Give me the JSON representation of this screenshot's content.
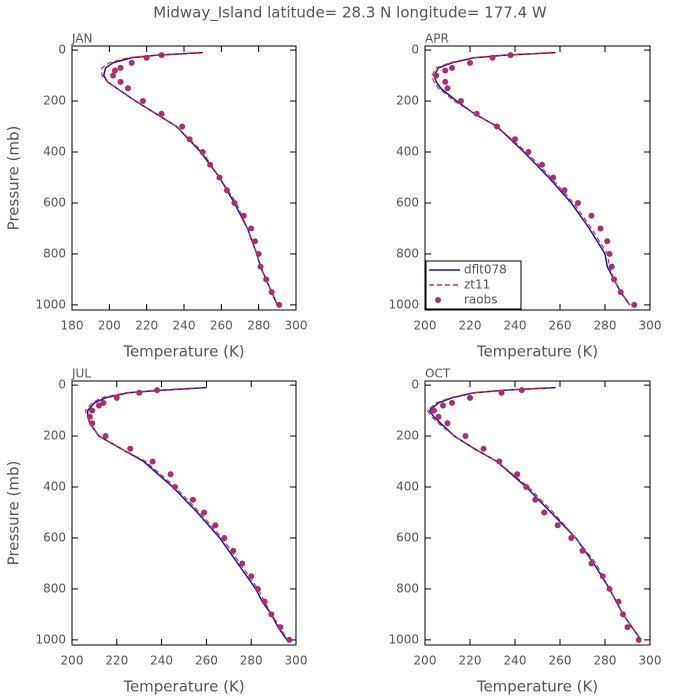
{
  "title": "Midway_Island  latitude= 28.3 N longitude= 177.4 W",
  "chart_data": [
    {
      "type": "line",
      "title": "JAN",
      "xlabel": "Temperature (K)",
      "ylabel": "Pressure (mb)",
      "xlim": [
        180,
        300
      ],
      "xticks": [
        180,
        200,
        220,
        240,
        260,
        280,
        300
      ],
      "ylim": [
        -16,
        1020
      ],
      "y_inverted": true,
      "yticks": [
        0,
        200,
        400,
        600,
        800,
        1000
      ],
      "series": [
        {
          "style": "solid",
          "color": "#1414b4",
          "y": [
            10,
            20,
            30,
            50,
            70,
            100,
            125,
            150,
            200,
            250,
            300,
            400,
            500,
            600,
            700,
            800,
            850,
            900,
            950,
            1000
          ],
          "x": [
            250,
            225,
            212,
            202,
            198,
            197,
            199,
            204,
            214,
            225,
            236,
            249,
            259,
            267,
            274,
            279,
            281,
            284,
            287,
            290
          ]
        },
        {
          "style": "dashed",
          "color": "#e02828",
          "y": [
            10,
            20,
            30,
            50,
            70,
            100,
            125,
            150,
            200,
            250,
            300,
            400,
            500,
            600,
            700,
            800,
            850,
            900,
            950,
            1000
          ],
          "x": [
            248,
            224,
            210,
            200,
            196,
            196,
            199,
            204,
            214,
            225,
            236,
            250,
            259,
            268,
            274,
            279,
            281,
            284,
            287,
            290
          ]
        },
        {
          "style": "markers",
          "color": "#a8306c",
          "y": [
            20,
            30,
            50,
            70,
            80,
            100,
            125,
            150,
            200,
            250,
            300,
            350,
            400,
            450,
            500,
            550,
            600,
            650,
            700,
            750,
            800,
            850,
            900,
            950,
            1000
          ],
          "x": [
            228,
            220,
            212,
            206,
            203,
            202,
            206,
            210,
            218,
            228,
            239,
            243,
            250,
            254,
            259,
            263,
            267,
            272,
            276,
            278,
            280,
            281,
            284,
            287,
            291
          ]
        }
      ]
    },
    {
      "type": "line",
      "title": "APR",
      "xlabel": "Temperature (K)",
      "legend": "lower left",
      "xlim": [
        200,
        300
      ],
      "xticks": [
        200,
        220,
        240,
        260,
        280,
        300
      ],
      "ylim": [
        -16,
        1020
      ],
      "y_inverted": true,
      "yticks": [
        0,
        200,
        400,
        600,
        800,
        1000
      ],
      "series": [
        {
          "name": "dflt078",
          "style": "solid",
          "color": "#1414b4",
          "y": [
            10,
            20,
            30,
            50,
            70,
            100,
            125,
            150,
            200,
            250,
            300,
            400,
            500,
            600,
            700,
            800,
            850,
            900,
            950,
            1000
          ],
          "x": [
            258,
            235,
            222,
            212,
            206,
            204,
            205,
            207,
            214,
            222,
            232,
            244,
            255,
            265,
            273,
            280,
            281,
            284,
            287,
            291
          ]
        },
        {
          "name": "zt11",
          "style": "dashed",
          "color": "#e02828",
          "y": [
            10,
            20,
            30,
            50,
            70,
            100,
            125,
            150,
            200,
            250,
            300,
            400,
            500,
            600,
            700,
            800,
            850,
            900,
            950,
            1000
          ],
          "x": [
            256,
            234,
            221,
            211,
            205,
            203,
            204,
            206,
            213,
            222,
            232,
            245,
            256,
            266,
            274,
            281,
            282,
            284,
            287,
            291
          ]
        },
        {
          "name": "raobs",
          "style": "markers",
          "color": "#a8306c",
          "y": [
            20,
            30,
            50,
            70,
            80,
            100,
            125,
            150,
            200,
            250,
            300,
            350,
            400,
            450,
            500,
            550,
            600,
            650,
            700,
            750,
            800,
            850,
            900,
            950,
            1000
          ],
          "x": [
            238,
            230,
            220,
            212,
            209,
            205,
            209,
            210,
            216,
            223,
            232,
            240,
            246,
            252,
            257,
            262,
            268,
            274,
            278,
            281,
            282,
            283,
            284,
            287,
            293
          ]
        }
      ]
    },
    {
      "type": "line",
      "title": "JUL",
      "xlabel": "Temperature (K)",
      "ylabel": "Pressure (mb)",
      "xlim": [
        200,
        300
      ],
      "xticks": [
        200,
        220,
        240,
        260,
        280,
        300
      ],
      "ylim": [
        -16,
        1020
      ],
      "y_inverted": true,
      "yticks": [
        0,
        200,
        400,
        600,
        800,
        1000
      ],
      "series": [
        {
          "style": "solid",
          "color": "#1414b4",
          "y": [
            10,
            20,
            30,
            50,
            70,
            100,
            125,
            150,
            200,
            250,
            300,
            400,
            500,
            600,
            700,
            800,
            850,
            900,
            950,
            1000
          ],
          "x": [
            260,
            240,
            225,
            215,
            210,
            207,
            207,
            208,
            212,
            222,
            232,
            245,
            256,
            266,
            274,
            282,
            285,
            289,
            292,
            296
          ]
        },
        {
          "style": "dashed",
          "color": "#e02828",
          "y": [
            10,
            20,
            30,
            50,
            70,
            100,
            125,
            150,
            200,
            250,
            300,
            400,
            500,
            600,
            700,
            800,
            850,
            900,
            950,
            1000
          ],
          "x": [
            258,
            238,
            224,
            213,
            209,
            206,
            207,
            208,
            212,
            222,
            233,
            246,
            257,
            267,
            275,
            283,
            286,
            289,
            293,
            296
          ]
        },
        {
          "style": "markers",
          "color": "#a8306c",
          "y": [
            20,
            30,
            50,
            70,
            80,
            100,
            125,
            150,
            200,
            250,
            300,
            350,
            400,
            450,
            500,
            550,
            600,
            650,
            700,
            750,
            800,
            850,
            900,
            950,
            1000
          ],
          "x": [
            238,
            230,
            220,
            214,
            212,
            209,
            208,
            209,
            215,
            226,
            236,
            244,
            246,
            254,
            259,
            264,
            268,
            272,
            276,
            280,
            283,
            286,
            289,
            293,
            297
          ]
        }
      ]
    },
    {
      "type": "line",
      "title": "OCT",
      "xlabel": "Temperature (K)",
      "xlim": [
        200,
        300
      ],
      "xticks": [
        200,
        220,
        240,
        260,
        280,
        300
      ],
      "ylim": [
        -16,
        1020
      ],
      "y_inverted": true,
      "yticks": [
        0,
        200,
        400,
        600,
        800,
        1000
      ],
      "series": [
        {
          "style": "solid",
          "color": "#1414b4",
          "y": [
            10,
            20,
            30,
            50,
            70,
            100,
            125,
            150,
            200,
            250,
            300,
            400,
            500,
            600,
            700,
            800,
            850,
            900,
            950,
            1000
          ],
          "x": [
            258,
            235,
            222,
            212,
            206,
            202,
            204,
            207,
            213,
            222,
            232,
            245,
            256,
            267,
            275,
            282,
            285,
            288,
            292,
            296
          ]
        },
        {
          "style": "dashed",
          "color": "#e02828",
          "y": [
            10,
            20,
            30,
            50,
            70,
            100,
            125,
            150,
            200,
            250,
            300,
            400,
            500,
            600,
            700,
            800,
            850,
            900,
            950,
            1000
          ],
          "x": [
            256,
            234,
            221,
            211,
            205,
            201,
            203,
            206,
            213,
            222,
            232,
            246,
            257,
            267,
            276,
            282,
            285,
            288,
            292,
            296
          ]
        },
        {
          "style": "markers",
          "color": "#a8306c",
          "y": [
            20,
            30,
            50,
            70,
            80,
            100,
            125,
            150,
            200,
            250,
            300,
            350,
            400,
            450,
            500,
            550,
            600,
            650,
            700,
            750,
            800,
            850,
            900,
            950,
            1000
          ],
          "x": [
            243,
            234,
            220,
            212,
            208,
            204,
            206,
            210,
            218,
            226,
            233,
            241,
            245,
            249,
            253,
            259,
            265,
            270,
            274,
            279,
            282,
            286,
            288,
            290,
            295
          ]
        }
      ]
    }
  ]
}
